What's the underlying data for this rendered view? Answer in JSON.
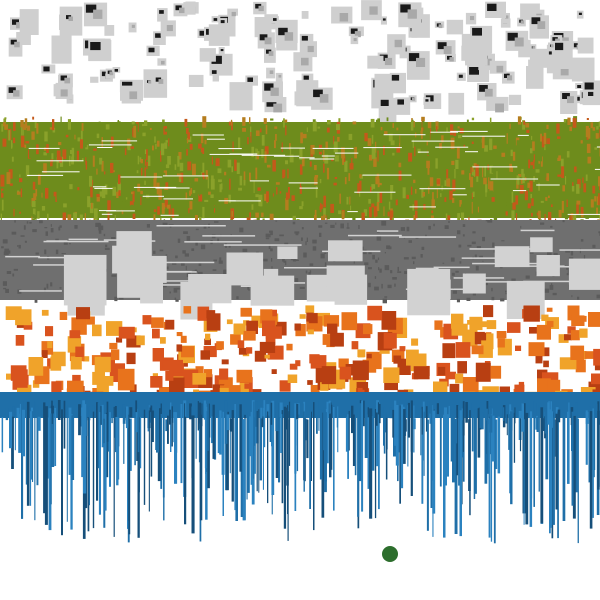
{
  "game": {
    "bands": [
      {
        "name": "gray-block-band",
        "pattern": "scattered-blocks",
        "colors": [
          "#cfcfcf",
          "#a9a9a9",
          "#1a1a1a"
        ]
      },
      {
        "name": "olive-noise-band",
        "pattern": "dense-noise",
        "colors": [
          "#6e8c1c",
          "#8aa12a",
          "#b57d1e",
          "#c4591a"
        ]
      },
      {
        "name": "charcoal-maze-band",
        "pattern": "maze-blocks",
        "colors": [
          "#6f6f6f",
          "#5b5b5b",
          "#d2d2d2"
        ]
      },
      {
        "name": "orange-blob-band",
        "pattern": "blobs",
        "colors": [
          "#d9531e",
          "#e8731c",
          "#f0a32a",
          "#b83f12"
        ]
      },
      {
        "name": "blue-drip-band",
        "pattern": "vertical-drips",
        "colors": [
          "#1f6fa8",
          "#2b82bf",
          "#164f7a"
        ]
      }
    ],
    "player_orb": {
      "name": "green-orb",
      "color": "#2d6e2d"
    }
  }
}
